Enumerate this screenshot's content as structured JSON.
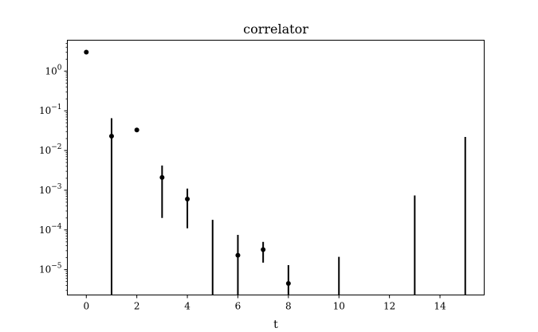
{
  "chart_data": {
    "type": "scatter",
    "title": "correlator",
    "xlabel": "t",
    "ylabel": "",
    "xlim": [
      -0.75,
      15.75
    ],
    "ylim": [
      2.3e-06,
      6.0
    ],
    "yscale": "log",
    "grid": false,
    "x_ticks": [
      0,
      2,
      4,
      6,
      8,
      10,
      12,
      14
    ],
    "y_ticks": [
      {
        "value": 1e-05,
        "base": "10",
        "exp": "−5"
      },
      {
        "value": 0.0001,
        "base": "10",
        "exp": "−4"
      },
      {
        "value": 0.001,
        "base": "10",
        "exp": "−3"
      },
      {
        "value": 0.01,
        "base": "10",
        "exp": "−2"
      },
      {
        "value": 0.1,
        "base": "10",
        "exp": "−1"
      },
      {
        "value": 1,
        "base": "10",
        "exp": "0"
      }
    ],
    "marker_color": "#000000",
    "series": [
      {
        "points": [
          {
            "x": 0,
            "y": 3.0,
            "low": null,
            "high": null
          },
          {
            "x": 1,
            "y": 0.023,
            "low": null,
            "high": 0.065
          },
          {
            "x": 2,
            "y": 0.033,
            "low": 0.029,
            "high": 0.037
          },
          {
            "x": 3,
            "y": 0.0021,
            "low": 0.0002,
            "high": 0.0042
          },
          {
            "x": 4,
            "y": 0.0006,
            "low": 0.00011,
            "high": 0.0011
          },
          {
            "x": 5,
            "y": null,
            "low": null,
            "high": 0.00018
          },
          {
            "x": 6,
            "y": 2.3e-05,
            "low": null,
            "high": 7.5e-05
          },
          {
            "x": 7,
            "y": 3.2e-05,
            "low": 1.5e-05,
            "high": 5e-05
          },
          {
            "x": 8,
            "y": 4.5e-06,
            "low": null,
            "high": 1.3e-05
          },
          {
            "x": 10,
            "y": null,
            "low": null,
            "high": 2.1e-05
          },
          {
            "x": 13,
            "y": null,
            "low": null,
            "high": 0.00074
          },
          {
            "x": 15,
            "y": null,
            "low": null,
            "high": 0.022
          }
        ]
      }
    ]
  }
}
